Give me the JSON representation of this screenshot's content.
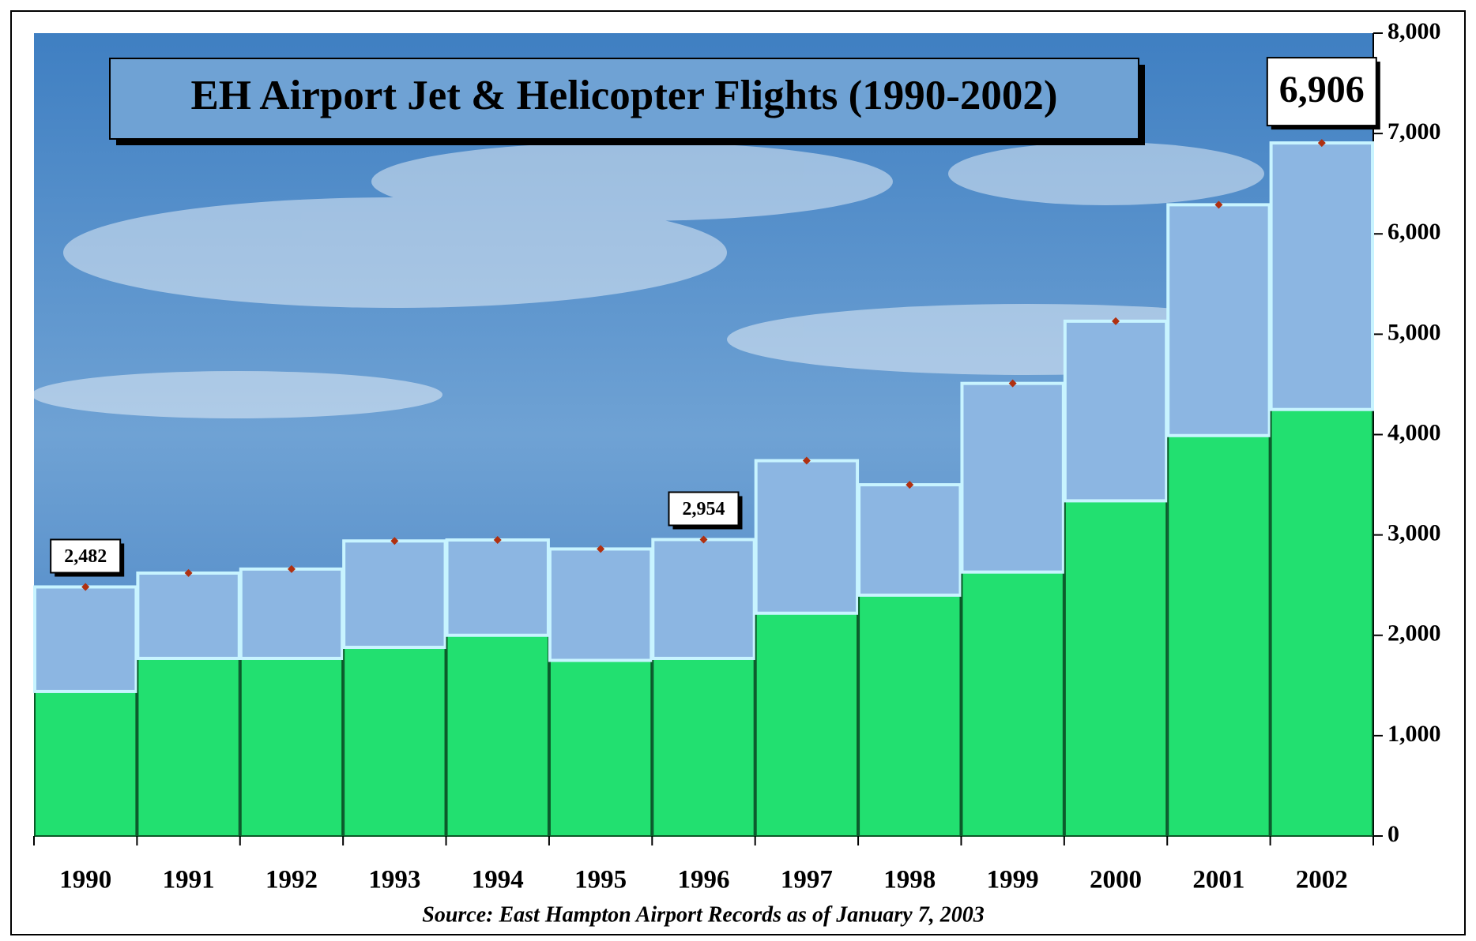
{
  "chart_data": {
    "type": "stacked-bar",
    "title": "EH Airport Jet & Helicopter Flights (1990-2002)",
    "source": "Source:  East Hampton Airport Records as of January 7, 2003",
    "categories": [
      "1990",
      "1991",
      "1992",
      "1993",
      "1994",
      "1995",
      "1996",
      "1997",
      "1998",
      "1999",
      "2000",
      "2001",
      "2002"
    ],
    "series": [
      {
        "color": "#22e070",
        "values": [
          1440,
          1770,
          1770,
          1880,
          2000,
          1750,
          1770,
          2220,
          2400,
          2630,
          3340,
          3990,
          4250
        ]
      },
      {
        "color": "#8cb6e2",
        "values": [
          1042,
          850,
          890,
          1060,
          950,
          1110,
          1184,
          1520,
          1100,
          1880,
          1790,
          2300,
          2656
        ]
      }
    ],
    "totals": {
      "color": "#b03010",
      "values": [
        2482,
        2620,
        2660,
        2940,
        2950,
        2860,
        2954,
        3740,
        3500,
        4510,
        5130,
        6290,
        6906
      ],
      "value_labels": [
        "2,482",
        null,
        null,
        null,
        null,
        null,
        "2,954",
        null,
        null,
        null,
        null,
        null,
        "6,906"
      ]
    },
    "ylim": [
      0,
      8000
    ],
    "yticks": [
      0,
      {
        "value": 1000,
        "label": "1,000"
      },
      {
        "value": 2000,
        "label": "2,000"
      },
      {
        "value": 3000,
        "label": "3,000"
      },
      {
        "value": 4000,
        "label": "4,000"
      },
      {
        "value": 5000,
        "label": "5,000"
      },
      {
        "value": 6000,
        "label": "6,000"
      },
      {
        "value": 7000,
        "label": "7,000"
      },
      {
        "value": 8000,
        "label": "8,000"
      }
    ]
  }
}
